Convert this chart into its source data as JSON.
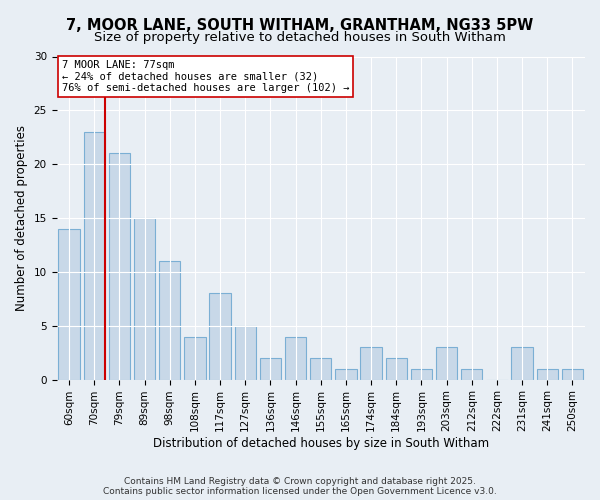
{
  "title": "7, MOOR LANE, SOUTH WITHAM, GRANTHAM, NG33 5PW",
  "subtitle": "Size of property relative to detached houses in South Witham",
  "xlabel": "Distribution of detached houses by size in South Witham",
  "ylabel": "Number of detached properties",
  "categories": [
    "60sqm",
    "70sqm",
    "79sqm",
    "89sqm",
    "98sqm",
    "108sqm",
    "117sqm",
    "127sqm",
    "136sqm",
    "146sqm",
    "155sqm",
    "165sqm",
    "174sqm",
    "184sqm",
    "193sqm",
    "203sqm",
    "212sqm",
    "222sqm",
    "231sqm",
    "241sqm",
    "250sqm"
  ],
  "values": [
    14,
    23,
    21,
    15,
    11,
    4,
    8,
    5,
    2,
    4,
    2,
    1,
    3,
    2,
    1,
    3,
    1,
    0,
    3,
    1,
    1
  ],
  "bar_color": "#c8d8e8",
  "bar_edge_color": "#7bafd4",
  "vline_x": 1.42,
  "vline_color": "#cc0000",
  "annotation_text": "7 MOOR LANE: 77sqm\n← 24% of detached houses are smaller (32)\n76% of semi-detached houses are larger (102) →",
  "annotation_box_color": "#ffffff",
  "annotation_box_edge_color": "#cc0000",
  "ylim": [
    0,
    30
  ],
  "yticks": [
    0,
    5,
    10,
    15,
    20,
    25,
    30
  ],
  "background_color": "#e8eef4",
  "footer": "Contains HM Land Registry data © Crown copyright and database right 2025.\nContains public sector information licensed under the Open Government Licence v3.0.",
  "title_fontsize": 10.5,
  "subtitle_fontsize": 9.5,
  "xlabel_fontsize": 8.5,
  "ylabel_fontsize": 8.5,
  "tick_fontsize": 7.5,
  "annotation_fontsize": 7.5,
  "footer_fontsize": 6.5
}
